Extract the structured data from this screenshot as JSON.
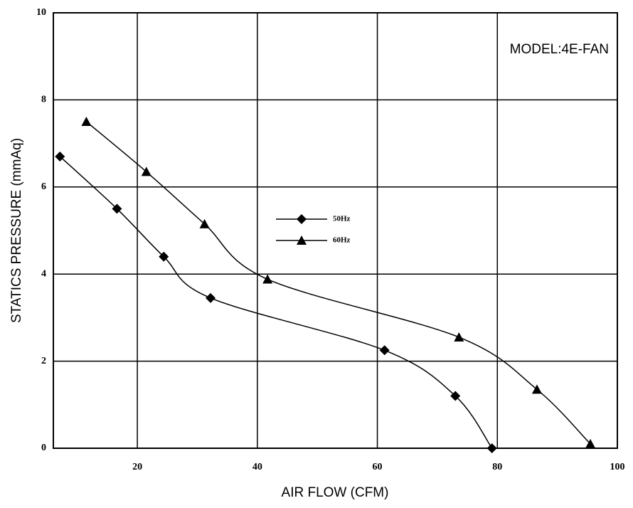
{
  "chart_data": {
    "type": "scatter",
    "annotation": "MODEL:4E-FAN",
    "xlabel": "AIR FLOW (CFM)",
    "ylabel": "STATICS PRESSURE (mmAq)",
    "xlim": [
      6,
      100
    ],
    "xticks": [
      20,
      40,
      60,
      80,
      100
    ],
    "ylim": [
      0,
      10
    ],
    "yticks": [
      0,
      2,
      4,
      6,
      8,
      10
    ],
    "grid": true,
    "series": [
      {
        "name": "50Hz",
        "color": "#000000",
        "marker": "diamond",
        "x": [
          7.1,
          16.6,
          24.4,
          32.2,
          61.2,
          73.0,
          79.1
        ],
        "values": [
          6.7,
          5.5,
          4.4,
          3.45,
          2.25,
          1.2,
          0
        ]
      },
      {
        "name": "60Hz",
        "color": "#000000",
        "marker": "triangle",
        "x": [
          11.5,
          21.5,
          31.2,
          41.7,
          73.6,
          86.6,
          95.5
        ],
        "values": [
          7.5,
          6.35,
          5.15,
          3.88,
          2.55,
          1.35,
          0.1
        ]
      }
    ]
  }
}
